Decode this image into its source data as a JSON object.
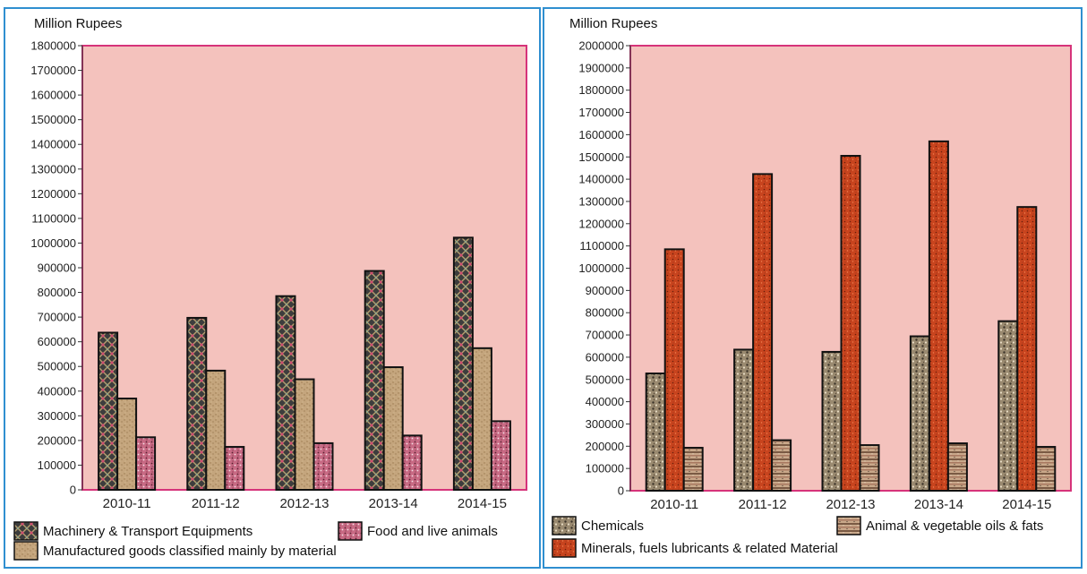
{
  "charts": [
    {
      "unit_label": "Million Rupees",
      "plot_bg": "#f4c2bd",
      "plot_border": "#d6337a",
      "chart_data": {
        "type": "bar",
        "categories": [
          "2010-11",
          "2011-12",
          "2012-13",
          "2013-14",
          "2014-15"
        ],
        "ylim": [
          0,
          1800000
        ],
        "ytick_step": 100000,
        "series": [
          {
            "name": "Machinery & Transport Equipments",
            "pattern": "machinery",
            "values": [
              637000,
              697000,
              785000,
              887000,
              1022000
            ]
          },
          {
            "name": "Manufactured goods classified mainly by material",
            "pattern": "manufactured",
            "values": [
              370000,
              483000,
              448000,
              497000,
              574000
            ]
          },
          {
            "name": "Food and live animals",
            "pattern": "food",
            "values": [
              213000,
              174000,
              189000,
              220000,
              278000
            ]
          }
        ]
      },
      "legend_rows": [
        [
          {
            "series": 0
          },
          {
            "series": 2
          }
        ],
        [
          {
            "series": 1
          }
        ]
      ]
    },
    {
      "unit_label": "Million Rupees",
      "plot_bg": "#f4c2bd",
      "plot_border": "#d6337a",
      "chart_data": {
        "type": "bar",
        "categories": [
          "2010-11",
          "2011-12",
          "2012-13",
          "2013-14",
          "2014-15"
        ],
        "ylim": [
          0,
          2000000
        ],
        "ytick_step": 100000,
        "series": [
          {
            "name": "Chemicals",
            "pattern": "chemicals",
            "values": [
              527000,
              634000,
              624000,
              694000,
              762000
            ]
          },
          {
            "name": "Minerals, fuels lubricants & related Material",
            "pattern": "minerals",
            "values": [
              1085000,
              1423000,
              1505000,
              1570000,
              1275000
            ]
          },
          {
            "name": "Animal & vegetable oils & fats",
            "pattern": "oils",
            "values": [
              193000,
              227000,
              205000,
              213000,
              197000
            ]
          }
        ]
      },
      "legend_rows": [
        [
          {
            "series": 0
          },
          {
            "series": 2
          }
        ],
        [
          {
            "series": 1
          }
        ]
      ]
    }
  ]
}
